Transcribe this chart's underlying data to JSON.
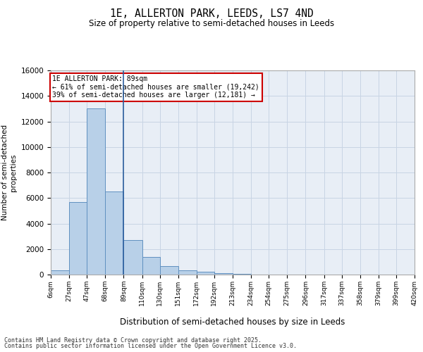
{
  "title": "1E, ALLERTON PARK, LEEDS, LS7 4ND",
  "subtitle": "Size of property relative to semi-detached houses in Leeds",
  "xlabel": "Distribution of semi-detached houses by size in Leeds",
  "ylabel": "Number of semi-detached\nproperties",
  "property_size": 89,
  "property_label": "1E ALLERTON PARK: 89sqm",
  "annotation_line1": "← 61% of semi-detached houses are smaller (19,242)",
  "annotation_line2": "39% of semi-detached houses are larger (12,181) →",
  "bin_edges": [
    6,
    27,
    47,
    68,
    89,
    110,
    130,
    151,
    172,
    192,
    213,
    234,
    254,
    275,
    296,
    317,
    337,
    358,
    379,
    399,
    420
  ],
  "bin_labels": [
    "6sqm",
    "27sqm",
    "47sqm",
    "68sqm",
    "89sqm",
    "110sqm",
    "130sqm",
    "151sqm",
    "172sqm",
    "192sqm",
    "213sqm",
    "234sqm",
    "254sqm",
    "275sqm",
    "296sqm",
    "317sqm",
    "337sqm",
    "358sqm",
    "379sqm",
    "399sqm",
    "420sqm"
  ],
  "values": [
    350,
    5700,
    13000,
    6500,
    2700,
    1400,
    650,
    350,
    220,
    130,
    60,
    20,
    5,
    2,
    1,
    0,
    0,
    0,
    0,
    0
  ],
  "bar_color": "#b8d0e8",
  "bar_edge_color": "#6090c0",
  "vline_color": "#2c5f9e",
  "annotation_box_color": "#cc0000",
  "grid_color": "#c8d4e4",
  "bg_color": "#e8eef6",
  "ylim": [
    0,
    16000
  ],
  "yticks": [
    0,
    2000,
    4000,
    6000,
    8000,
    10000,
    12000,
    14000,
    16000
  ],
  "footer_line1": "Contains HM Land Registry data © Crown copyright and database right 2025.",
  "footer_line2": "Contains public sector information licensed under the Open Government Licence v3.0."
}
